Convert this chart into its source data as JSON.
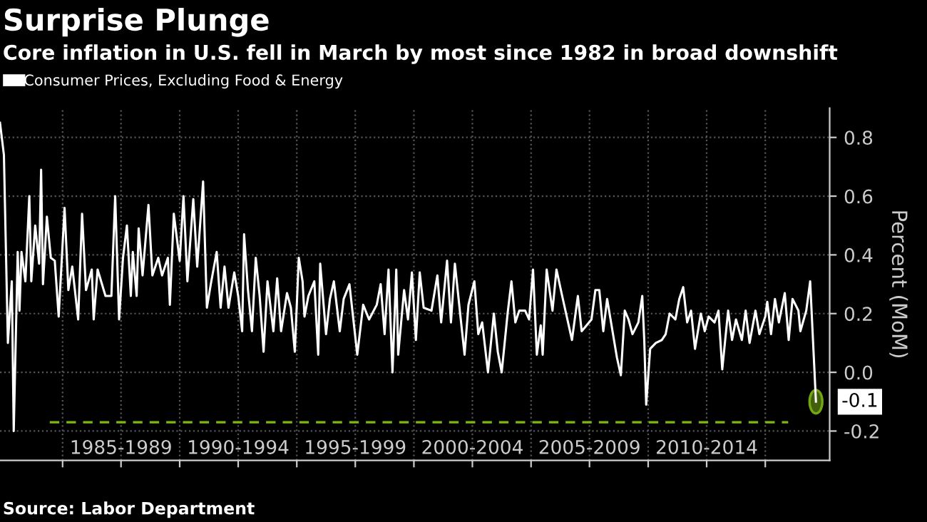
{
  "chart_data": {
    "type": "line",
    "title": "Surprise Plunge",
    "subtitle": "Core inflation in U.S. fell in March by most since 1982 in broad downshift",
    "ylabel": "Percent (MoM)",
    "annotations": [
      "Source: Labor Department",
      {
        "text": "-0.1",
        "x": "2017-03",
        "y": -0.1
      }
    ],
    "legend": "top left",
    "grid": true,
    "marker": "none",
    "line_style": "solid",
    "xlim": [
      "1982-05",
      "2017-10"
    ],
    "ylim": [
      -0.3,
      0.9
    ],
    "xticks": [
      {
        "value": "1985-01",
        "label": null
      },
      {
        "value": "1987-07",
        "label": "1985-1989"
      },
      {
        "value": "1990-01",
        "label": null
      },
      {
        "value": "1992-07",
        "label": "1990-1994"
      },
      {
        "value": "1995-01",
        "label": null
      },
      {
        "value": "1997-07",
        "label": "1995-1999"
      },
      {
        "value": "2000-01",
        "label": null
      },
      {
        "value": "2002-07",
        "label": "2000-2004"
      },
      {
        "value": "2005-01",
        "label": null
      },
      {
        "value": "2007-07",
        "label": "2005-2009"
      },
      {
        "value": "2010-01",
        "label": null
      },
      {
        "value": "2012-07",
        "label": "2010-2014"
      },
      {
        "value": "2015-01",
        "label": null
      }
    ],
    "yticks": [
      -0.2,
      {
        "value": 0,
        "label": "0.0"
      },
      0.2,
      0.4,
      0.6,
      0.8
    ],
    "ref_lines": [
      {
        "axis": "y",
        "value": -0.17,
        "color": "#7fb814",
        "line_style": "dashed"
      }
    ],
    "series": [
      {
        "name": "Consumer Prices, Excluding Food & Energy",
        "color": "#ffffff",
        "x": [
          "1982-05",
          "1982-07",
          "1982-09",
          "1982-11",
          "1982-12",
          "1983-02",
          "1983-03",
          "1983-04",
          "1983-06",
          "1983-08",
          "1983-09",
          "1983-11",
          "1984-01",
          "1984-02",
          "1984-03",
          "1984-05",
          "1984-07",
          "1984-09",
          "1984-11",
          "1985-02",
          "1985-04",
          "1985-06",
          "1985-09",
          "1985-11",
          "1986-01",
          "1986-04",
          "1986-05",
          "1986-07",
          "1986-11",
          "1987-02",
          "1987-04",
          "1987-06",
          "1987-08",
          "1987-10",
          "1987-12",
          "1988-01",
          "1988-03",
          "1988-04",
          "1988-06",
          "1988-09",
          "1988-11",
          "1989-02",
          "1989-04",
          "1989-07",
          "1989-08",
          "1989-10",
          "1990-01",
          "1990-03",
          "1990-05",
          "1990-08",
          "1990-10",
          "1991-01",
          "1991-03",
          "1991-05",
          "1991-08",
          "1991-10",
          "1991-12",
          "1992-02",
          "1992-05",
          "1992-07",
          "1992-09",
          "1992-10",
          "1992-12",
          "1993-02",
          "1993-04",
          "1993-06",
          "1993-08",
          "1993-10",
          "1994-01",
          "1994-03",
          "1994-05",
          "1994-08",
          "1994-10",
          "1994-12",
          "1995-02",
          "1995-04",
          "1995-05",
          "1995-07",
          "1995-10",
          "1995-12",
          "1996-01",
          "1996-04",
          "1996-06",
          "1996-08",
          "1996-11",
          "1997-01",
          "1997-04",
          "1997-08",
          "1997-11",
          "1998-02",
          "1998-06",
          "1998-08",
          "1998-10",
          "1998-12",
          "1999-02",
          "1999-04",
          "1999-05",
          "1999-08",
          "1999-10",
          "1999-12",
          "2000-02",
          "2000-04",
          "2000-06",
          "2000-10",
          "2001-01",
          "2001-03",
          "2001-06",
          "2001-08",
          "2001-10",
          "2002-01",
          "2002-03",
          "2002-05",
          "2002-08",
          "2002-10",
          "2002-12",
          "2003-03",
          "2003-06",
          "2003-08",
          "2003-10",
          "2004-01",
          "2004-03",
          "2004-05",
          "2004-07",
          "2004-10",
          "2004-12",
          "2005-02",
          "2005-04",
          "2005-06",
          "2005-07",
          "2005-09",
          "2005-12",
          "2006-02",
          "2006-05",
          "2006-07",
          "2006-10",
          "2007-01",
          "2007-03",
          "2007-08",
          "2007-10",
          "2007-12",
          "2008-02",
          "2008-04",
          "2008-06",
          "2008-09",
          "2008-11",
          "2009-01",
          "2009-03",
          "2009-05",
          "2009-08",
          "2009-10",
          "2009-11",
          "2009-12",
          "2010-02",
          "2010-05",
          "2010-08",
          "2010-10",
          "2010-12",
          "2011-03",
          "2011-05",
          "2011-07",
          "2011-09",
          "2011-11",
          "2012-01",
          "2012-04",
          "2012-06",
          "2012-08",
          "2012-11",
          "2013-01",
          "2013-03",
          "2013-06",
          "2013-08",
          "2013-10",
          "2014-01",
          "2014-03",
          "2014-05",
          "2014-08",
          "2014-10",
          "2015-01",
          "2015-02",
          "2015-04",
          "2015-06",
          "2015-08",
          "2015-11",
          "2016-01",
          "2016-03",
          "2016-06",
          "2016-07",
          "2016-10",
          "2016-12",
          "2017-03"
        ],
        "values": [
          0.85,
          0.74,
          0.1,
          0.31,
          -0.2,
          0.41,
          0.21,
          0.41,
          0.31,
          0.6,
          0.31,
          0.5,
          0.37,
          0.69,
          0.3,
          0.53,
          0.39,
          0.38,
          0.19,
          0.56,
          0.28,
          0.36,
          0.18,
          0.54,
          0.28,
          0.35,
          0.18,
          0.35,
          0.26,
          0.26,
          0.6,
          0.18,
          0.39,
          0.5,
          0.26,
          0.41,
          0.26,
          0.49,
          0.33,
          0.57,
          0.33,
          0.39,
          0.33,
          0.39,
          0.23,
          0.54,
          0.38,
          0.6,
          0.31,
          0.59,
          0.36,
          0.65,
          0.22,
          0.3,
          0.41,
          0.22,
          0.36,
          0.22,
          0.34,
          0.26,
          0.14,
          0.47,
          0.28,
          0.14,
          0.39,
          0.26,
          0.07,
          0.31,
          0.14,
          0.32,
          0.14,
          0.27,
          0.22,
          0.07,
          0.39,
          0.31,
          0.19,
          0.26,
          0.31,
          0.06,
          0.37,
          0.13,
          0.25,
          0.31,
          0.14,
          0.25,
          0.3,
          0.06,
          0.23,
          0.18,
          0.23,
          0.3,
          0.13,
          0.35,
          0.0,
          0.35,
          0.06,
          0.28,
          0.18,
          0.34,
          0.11,
          0.34,
          0.22,
          0.21,
          0.33,
          0.17,
          0.38,
          0.17,
          0.37,
          0.18,
          0.06,
          0.23,
          0.31,
          0.13,
          0.17,
          0.0,
          0.2,
          0.07,
          0.0,
          0.2,
          0.31,
          0.17,
          0.21,
          0.21,
          0.18,
          0.35,
          0.06,
          0.16,
          0.06,
          0.35,
          0.21,
          0.35,
          0.26,
          0.2,
          0.11,
          0.26,
          0.14,
          0.18,
          0.28,
          0.28,
          0.14,
          0.25,
          0.17,
          0.05,
          -0.01,
          0.21,
          0.18,
          0.13,
          0.17,
          0.26,
          0.11,
          -0.11,
          0.08,
          0.1,
          0.11,
          0.13,
          0.2,
          0.18,
          0.25,
          0.29,
          0.17,
          0.21,
          0.08,
          0.2,
          0.14,
          0.19,
          0.17,
          0.21,
          0.01,
          0.21,
          0.11,
          0.18,
          0.11,
          0.21,
          0.1,
          0.21,
          0.13,
          0.19,
          0.24,
          0.13,
          0.25,
          0.17,
          0.27,
          0.11,
          0.25,
          0.21,
          0.14,
          0.21,
          0.31,
          -0.1
        ]
      }
    ]
  }
}
